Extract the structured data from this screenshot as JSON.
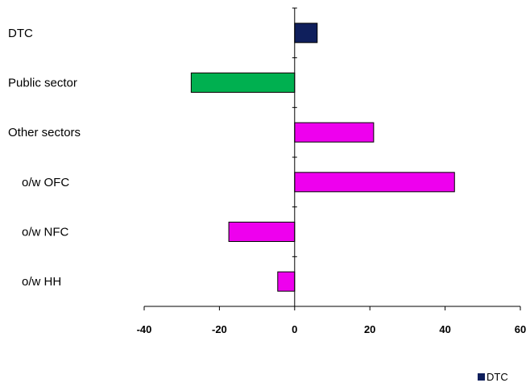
{
  "chart_data": {
    "type": "bar",
    "orientation": "horizontal",
    "categories": [
      "DTC",
      "Public sector",
      "Other sectors",
      "o/w OFC",
      "o/w NFC",
      "o/w HH"
    ],
    "values": [
      6,
      -27.5,
      21,
      42.5,
      -17.5,
      -4.5
    ],
    "colors": [
      "#0f1f5c",
      "#00b050",
      "#ee00ee",
      "#ee00ee",
      "#ee00ee",
      "#ee00ee"
    ],
    "category_indent": [
      false,
      false,
      false,
      true,
      true,
      true
    ],
    "xlim": [
      -40,
      60
    ],
    "xticks": [
      "-40",
      "-20",
      "0",
      "20",
      "40",
      "60"
    ],
    "grid": false,
    "legend": {
      "position": "bottom-right",
      "entries": [
        {
          "label": "DTC",
          "color": "#0f1f5c"
        }
      ]
    }
  }
}
